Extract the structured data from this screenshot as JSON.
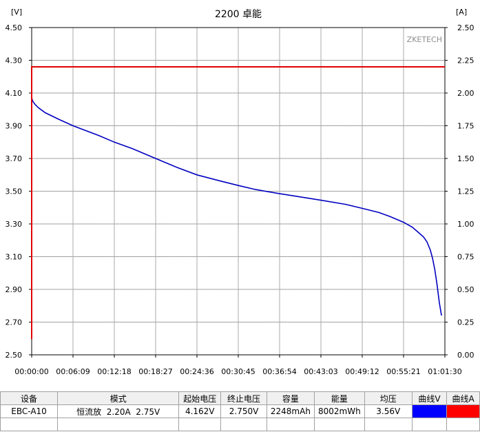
{
  "chart_data": {
    "type": "line",
    "title": "2200 卓能",
    "watermark": "ZKETECH",
    "left_axis": {
      "unit_label": "[V]",
      "range": [
        2.5,
        4.5
      ],
      "ticks": [
        "2.50",
        "2.70",
        "2.90",
        "3.10",
        "3.30",
        "3.50",
        "3.70",
        "3.90",
        "4.10",
        "4.30",
        "4.50"
      ]
    },
    "right_axis": {
      "unit_label": "[A]",
      "range": [
        0,
        2.5
      ],
      "ticks": [
        "0.00",
        "0.25",
        "0.50",
        "0.75",
        "1.00",
        "1.25",
        "1.50",
        "1.75",
        "2.00",
        "2.25",
        "2.50"
      ]
    },
    "x_axis": {
      "range_seconds": [
        0,
        3690
      ],
      "ticks": [
        "00:00:00",
        "00:06:09",
        "00:12:18",
        "00:18:27",
        "00:24:36",
        "00:30:45",
        "00:36:54",
        "00:43:03",
        "00:49:12",
        "00:55:21",
        "01:01:30"
      ]
    },
    "grid": true,
    "series": [
      {
        "axis": "left",
        "color": "#0000c0",
        "x_seconds": [
          0,
          10,
          30,
          60,
          120,
          240,
          369,
          600,
          738,
          900,
          1107,
          1300,
          1476,
          1700,
          1845,
          2000,
          2214,
          2400,
          2583,
          2800,
          2952,
          3100,
          3200,
          3321,
          3400,
          3450,
          3500,
          3530,
          3560,
          3580,
          3600,
          3620,
          3640,
          3660
        ],
        "values": [
          4.07,
          4.05,
          4.03,
          4.01,
          3.98,
          3.94,
          3.9,
          3.84,
          3.8,
          3.76,
          3.7,
          3.645,
          3.6,
          3.56,
          3.535,
          3.51,
          3.485,
          3.465,
          3.445,
          3.42,
          3.395,
          3.37,
          3.345,
          3.31,
          3.28,
          3.25,
          3.22,
          3.19,
          3.14,
          3.09,
          3.02,
          2.93,
          2.82,
          2.74
        ]
      },
      {
        "axis": "right",
        "color": "#e00000",
        "x_seconds": [
          0,
          0,
          3690
        ],
        "values": [
          0.12,
          2.2,
          2.2
        ]
      }
    ]
  },
  "summary": {
    "headers": [
      "设备",
      "模式",
      "起始电压",
      "终止电压",
      "容量",
      "能量",
      "均压",
      "曲线V",
      "曲线A"
    ],
    "device": "EBC-A10",
    "mode": "恒流放  2.20A  2.75V",
    "start_voltage": "4.162V",
    "end_voltage": "2.750V",
    "capacity": "2248mAh",
    "energy": "8002mWh",
    "avg_voltage": "3.56V",
    "curve_v_color": "#0000ff",
    "curve_a_color": "#ff0000"
  }
}
